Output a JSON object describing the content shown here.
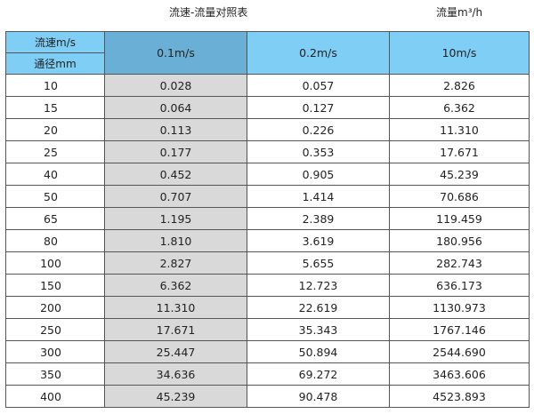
{
  "title": "流速-流量对照表",
  "unit_label": "流量m³/h",
  "colors": {
    "header": "#7fcef5",
    "header_highlight": "#6ab0d6",
    "highlight_column": "#d9d9d9"
  },
  "table": {
    "corner_top": "流速m/s",
    "corner_bottom": "通径mm",
    "columns": [
      "0.1m/s",
      "0.2m/s",
      "10m/s"
    ],
    "rows": [
      [
        "10",
        "0.028",
        "0.057",
        "2.826"
      ],
      [
        "15",
        "0.064",
        "0.127",
        "6.362"
      ],
      [
        "20",
        "0.113",
        "0.226",
        "11.310"
      ],
      [
        "25",
        "0.177",
        "0.353",
        "17.671"
      ],
      [
        "40",
        "0.452",
        "0.905",
        "45.239"
      ],
      [
        "50",
        "0.707",
        "1.414",
        "70.686"
      ],
      [
        "65",
        "1.195",
        "2.389",
        "119.459"
      ],
      [
        "80",
        "1.810",
        "3.619",
        "180.956"
      ],
      [
        "100",
        "2.827",
        "5.655",
        "282.743"
      ],
      [
        "150",
        "6.362",
        "12.723",
        "636.173"
      ],
      [
        "200",
        "11.310",
        "22.619",
        "1130.973"
      ],
      [
        "250",
        "17.671",
        "35.343",
        "1767.146"
      ],
      [
        "300",
        "25.447",
        "50.894",
        "2544.690"
      ],
      [
        "350",
        "34.636",
        "69.272",
        "3463.606"
      ],
      [
        "400",
        "45.239",
        "90.478",
        "4523.893"
      ]
    ]
  }
}
